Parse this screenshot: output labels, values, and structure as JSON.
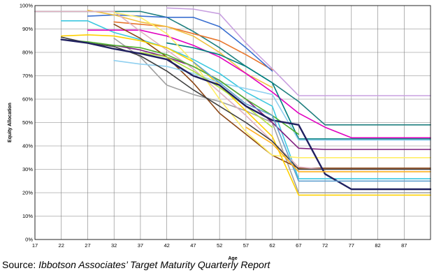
{
  "chart_data": {
    "type": "line",
    "title": "",
    "xlabel": "Age",
    "ylabel": "Equity Allocation",
    "x_ticks": [
      "17",
      "22",
      "27",
      "32",
      "37",
      "42",
      "47",
      "52",
      "57",
      "62",
      "67",
      "72",
      "77",
      "82",
      "87"
    ],
    "y_ticks": [
      "0%",
      "10%",
      "20%",
      "30%",
      "40%",
      "50%",
      "60%",
      "70%",
      "80%",
      "90%",
      "100%"
    ],
    "xlim": [
      17,
      92
    ],
    "ylim": [
      0,
      100
    ],
    "grid": true,
    "legend": "none",
    "series": [
      {
        "color": "#C8A0E0",
        "points": [
          [
            42,
            99
          ],
          [
            47,
            98.5
          ],
          [
            52,
            96.5
          ],
          [
            57,
            84
          ],
          [
            62,
            73
          ],
          [
            67,
            61.5
          ],
          [
            72,
            61.5
          ],
          [
            77,
            61.5
          ],
          [
            82,
            61.5
          ],
          [
            92,
            61.5
          ]
        ]
      },
      {
        "color": "#1F7F7F",
        "points": [
          [
            17,
            97.5
          ],
          [
            22,
            97.5
          ],
          [
            27,
            97.5
          ],
          [
            32,
            97.5
          ],
          [
            37,
            97.5
          ],
          [
            42,
            95
          ],
          [
            47,
            89
          ],
          [
            52,
            82
          ],
          [
            57,
            74
          ],
          [
            62,
            67
          ],
          [
            67,
            59
          ],
          [
            72,
            49
          ],
          [
            77,
            49
          ],
          [
            82,
            49
          ],
          [
            92,
            49
          ]
        ]
      },
      {
        "color": "#E8762C",
        "points": [
          [
            32,
            93
          ],
          [
            37,
            92
          ],
          [
            42,
            91
          ],
          [
            47,
            88
          ],
          [
            52,
            85
          ],
          [
            57,
            79
          ],
          [
            62,
            72.5
          ]
        ]
      },
      {
        "color": "#3A6FD0",
        "points": [
          [
            27,
            95.5
          ],
          [
            32,
            96
          ],
          [
            37,
            95.5
          ],
          [
            42,
            95
          ],
          [
            47,
            95
          ],
          [
            52,
            91
          ],
          [
            57,
            82
          ],
          [
            62,
            72
          ]
        ]
      },
      {
        "color": "#F0C040",
        "points": [
          [
            27,
            98
          ],
          [
            32,
            96
          ],
          [
            37,
            93
          ],
          [
            42,
            91
          ],
          [
            47,
            87
          ],
          [
            52,
            80
          ],
          [
            57,
            71
          ],
          [
            62,
            65
          ]
        ]
      },
      {
        "color": "#A0A0A0",
        "points": [
          [
            32,
            86
          ],
          [
            37,
            78
          ],
          [
            42,
            66
          ],
          [
            47,
            62
          ],
          [
            52,
            59
          ],
          [
            57,
            55
          ],
          [
            62,
            50
          ],
          [
            67,
            20
          ],
          [
            72,
            20
          ],
          [
            77,
            20
          ],
          [
            82,
            20
          ],
          [
            92,
            20
          ]
        ]
      },
      {
        "color": "#3CC8E0",
        "points": [
          [
            22,
            93.5
          ],
          [
            27,
            93.5
          ],
          [
            32,
            88.5
          ],
          [
            37,
            85.5
          ],
          [
            42,
            82
          ],
          [
            47,
            77
          ],
          [
            52,
            71
          ],
          [
            57,
            63
          ],
          [
            62,
            57
          ],
          [
            67,
            26
          ],
          [
            72,
            26
          ],
          [
            77,
            26
          ],
          [
            82,
            26
          ],
          [
            92,
            26
          ]
        ]
      },
      {
        "color": "#E000C0",
        "points": [
          [
            27,
            89.5
          ],
          [
            32,
            89.5
          ],
          [
            37,
            89.5
          ],
          [
            42,
            87
          ],
          [
            47,
            83
          ],
          [
            52,
            78
          ],
          [
            57,
            71
          ],
          [
            62,
            63
          ],
          [
            67,
            54
          ],
          [
            72,
            48
          ],
          [
            77,
            43.5
          ],
          [
            82,
            43.5
          ],
          [
            92,
            43.5
          ]
        ]
      },
      {
        "color": "#007F7F",
        "points": [
          [
            42,
            84
          ],
          [
            47,
            82
          ],
          [
            52,
            79
          ],
          [
            57,
            74
          ],
          [
            62,
            67
          ],
          [
            67,
            43
          ],
          [
            72,
            43
          ],
          [
            77,
            43
          ],
          [
            82,
            43
          ],
          [
            92,
            43
          ]
        ]
      },
      {
        "color": "#7F1F7F",
        "points": [
          [
            32,
            83
          ],
          [
            37,
            81
          ],
          [
            42,
            78
          ],
          [
            47,
            74
          ],
          [
            52,
            68
          ],
          [
            57,
            60
          ],
          [
            62,
            50
          ],
          [
            67,
            39
          ],
          [
            72,
            38.5
          ],
          [
            77,
            38.5
          ],
          [
            82,
            38.5
          ],
          [
            92,
            38.5
          ]
        ]
      },
      {
        "color": "#8B4513",
        "points": [
          [
            32,
            92
          ],
          [
            37,
            86
          ],
          [
            42,
            78
          ],
          [
            47,
            67
          ],
          [
            52,
            54
          ],
          [
            57,
            45
          ],
          [
            62,
            36
          ],
          [
            67,
            30.5
          ],
          [
            72,
            30.5
          ],
          [
            77,
            30.5
          ],
          [
            82,
            30.5
          ],
          [
            92,
            30.5
          ]
        ]
      },
      {
        "color": "#E0B0C0",
        "points": [
          [
            17,
            97.5
          ],
          [
            22,
            97.5
          ],
          [
            27,
            97.5
          ],
          [
            32,
            97.5
          ],
          [
            37,
            89
          ],
          [
            42,
            81
          ],
          [
            47,
            73
          ],
          [
            52,
            63
          ],
          [
            57,
            53
          ],
          [
            62,
            42
          ],
          [
            67,
            31
          ],
          [
            72,
            30
          ],
          [
            77,
            30
          ],
          [
            82,
            30
          ],
          [
            92,
            30
          ]
        ]
      },
      {
        "color": "#FFEE66",
        "points": [
          [
            32,
            97
          ],
          [
            37,
            95
          ],
          [
            42,
            88
          ],
          [
            47,
            76
          ],
          [
            52,
            60
          ],
          [
            57,
            46
          ],
          [
            62,
            36
          ],
          [
            67,
            35
          ],
          [
            72,
            35
          ],
          [
            77,
            35
          ],
          [
            82,
            35
          ],
          [
            92,
            35
          ]
        ]
      },
      {
        "color": "#FFD000",
        "points": [
          [
            22,
            87
          ],
          [
            27,
            87.5
          ],
          [
            32,
            87
          ],
          [
            37,
            85
          ],
          [
            42,
            82
          ],
          [
            47,
            76
          ],
          [
            52,
            66
          ],
          [
            57,
            55
          ],
          [
            62,
            44
          ],
          [
            67,
            19
          ],
          [
            72,
            19
          ],
          [
            77,
            19
          ],
          [
            82,
            19
          ],
          [
            92,
            19
          ]
        ]
      },
      {
        "color": "#90D0F0",
        "points": [
          [
            32,
            76.5
          ],
          [
            37,
            75
          ],
          [
            42,
            74
          ],
          [
            47,
            71
          ],
          [
            52,
            67
          ],
          [
            57,
            64.5
          ],
          [
            62,
            62
          ],
          [
            67,
            42.5
          ],
          [
            72,
            42.5
          ],
          [
            77,
            42.5
          ],
          [
            82,
            42.5
          ],
          [
            92,
            42.5
          ]
        ]
      },
      {
        "color": "#50B030",
        "points": [
          [
            22,
            85.5
          ],
          [
            27,
            84.5
          ],
          [
            32,
            83
          ],
          [
            37,
            82
          ],
          [
            42,
            79
          ],
          [
            47,
            74
          ],
          [
            52,
            68
          ],
          [
            57,
            60
          ],
          [
            62,
            53
          ],
          [
            67,
            45
          ]
        ]
      },
      {
        "color": "#B0E040",
        "points": [
          [
            37,
            80
          ],
          [
            42,
            78
          ],
          [
            47,
            72
          ],
          [
            52,
            65
          ],
          [
            57,
            57
          ],
          [
            62,
            48
          ]
        ]
      },
      {
        "color": "#404040",
        "points": [
          [
            22,
            86.5
          ],
          [
            27,
            84
          ],
          [
            32,
            82.5
          ],
          [
            37,
            78.5
          ],
          [
            42,
            72
          ],
          [
            47,
            64
          ],
          [
            52,
            57
          ],
          [
            57,
            50
          ],
          [
            62,
            42
          ],
          [
            67,
            30
          ],
          [
            72,
            30
          ],
          [
            77,
            30
          ],
          [
            82,
            30
          ],
          [
            92,
            30
          ]
        ]
      },
      {
        "color": "#202060",
        "points": [
          [
            22,
            85.5
          ],
          [
            27,
            84
          ],
          [
            32,
            81.5
          ],
          [
            37,
            79.5
          ],
          [
            42,
            77
          ],
          [
            47,
            70
          ],
          [
            52,
            66
          ],
          [
            57,
            57
          ],
          [
            62,
            51
          ],
          [
            67,
            49
          ],
          [
            72,
            28
          ],
          [
            77,
            21.5
          ],
          [
            82,
            21.5
          ],
          [
            92,
            21.5
          ]
        ]
      },
      {
        "color": "#60A0D0",
        "points": [
          [
            47,
            76
          ],
          [
            52,
            67
          ],
          [
            57,
            58
          ],
          [
            62,
            53
          ],
          [
            67,
            25
          ],
          [
            72,
            25
          ],
          [
            77,
            25
          ],
          [
            82,
            25
          ],
          [
            92,
            25
          ]
        ]
      },
      {
        "color": "#FFB020",
        "points": [
          [
            57,
            48
          ],
          [
            62,
            41
          ],
          [
            67,
            29
          ],
          [
            72,
            29
          ],
          [
            77,
            29
          ],
          [
            82,
            29
          ],
          [
            92,
            29
          ]
        ]
      }
    ]
  },
  "source": {
    "prefix": "Source:  ",
    "name": "Ibbotson Associates’ Target Maturity Quarterly Report"
  }
}
